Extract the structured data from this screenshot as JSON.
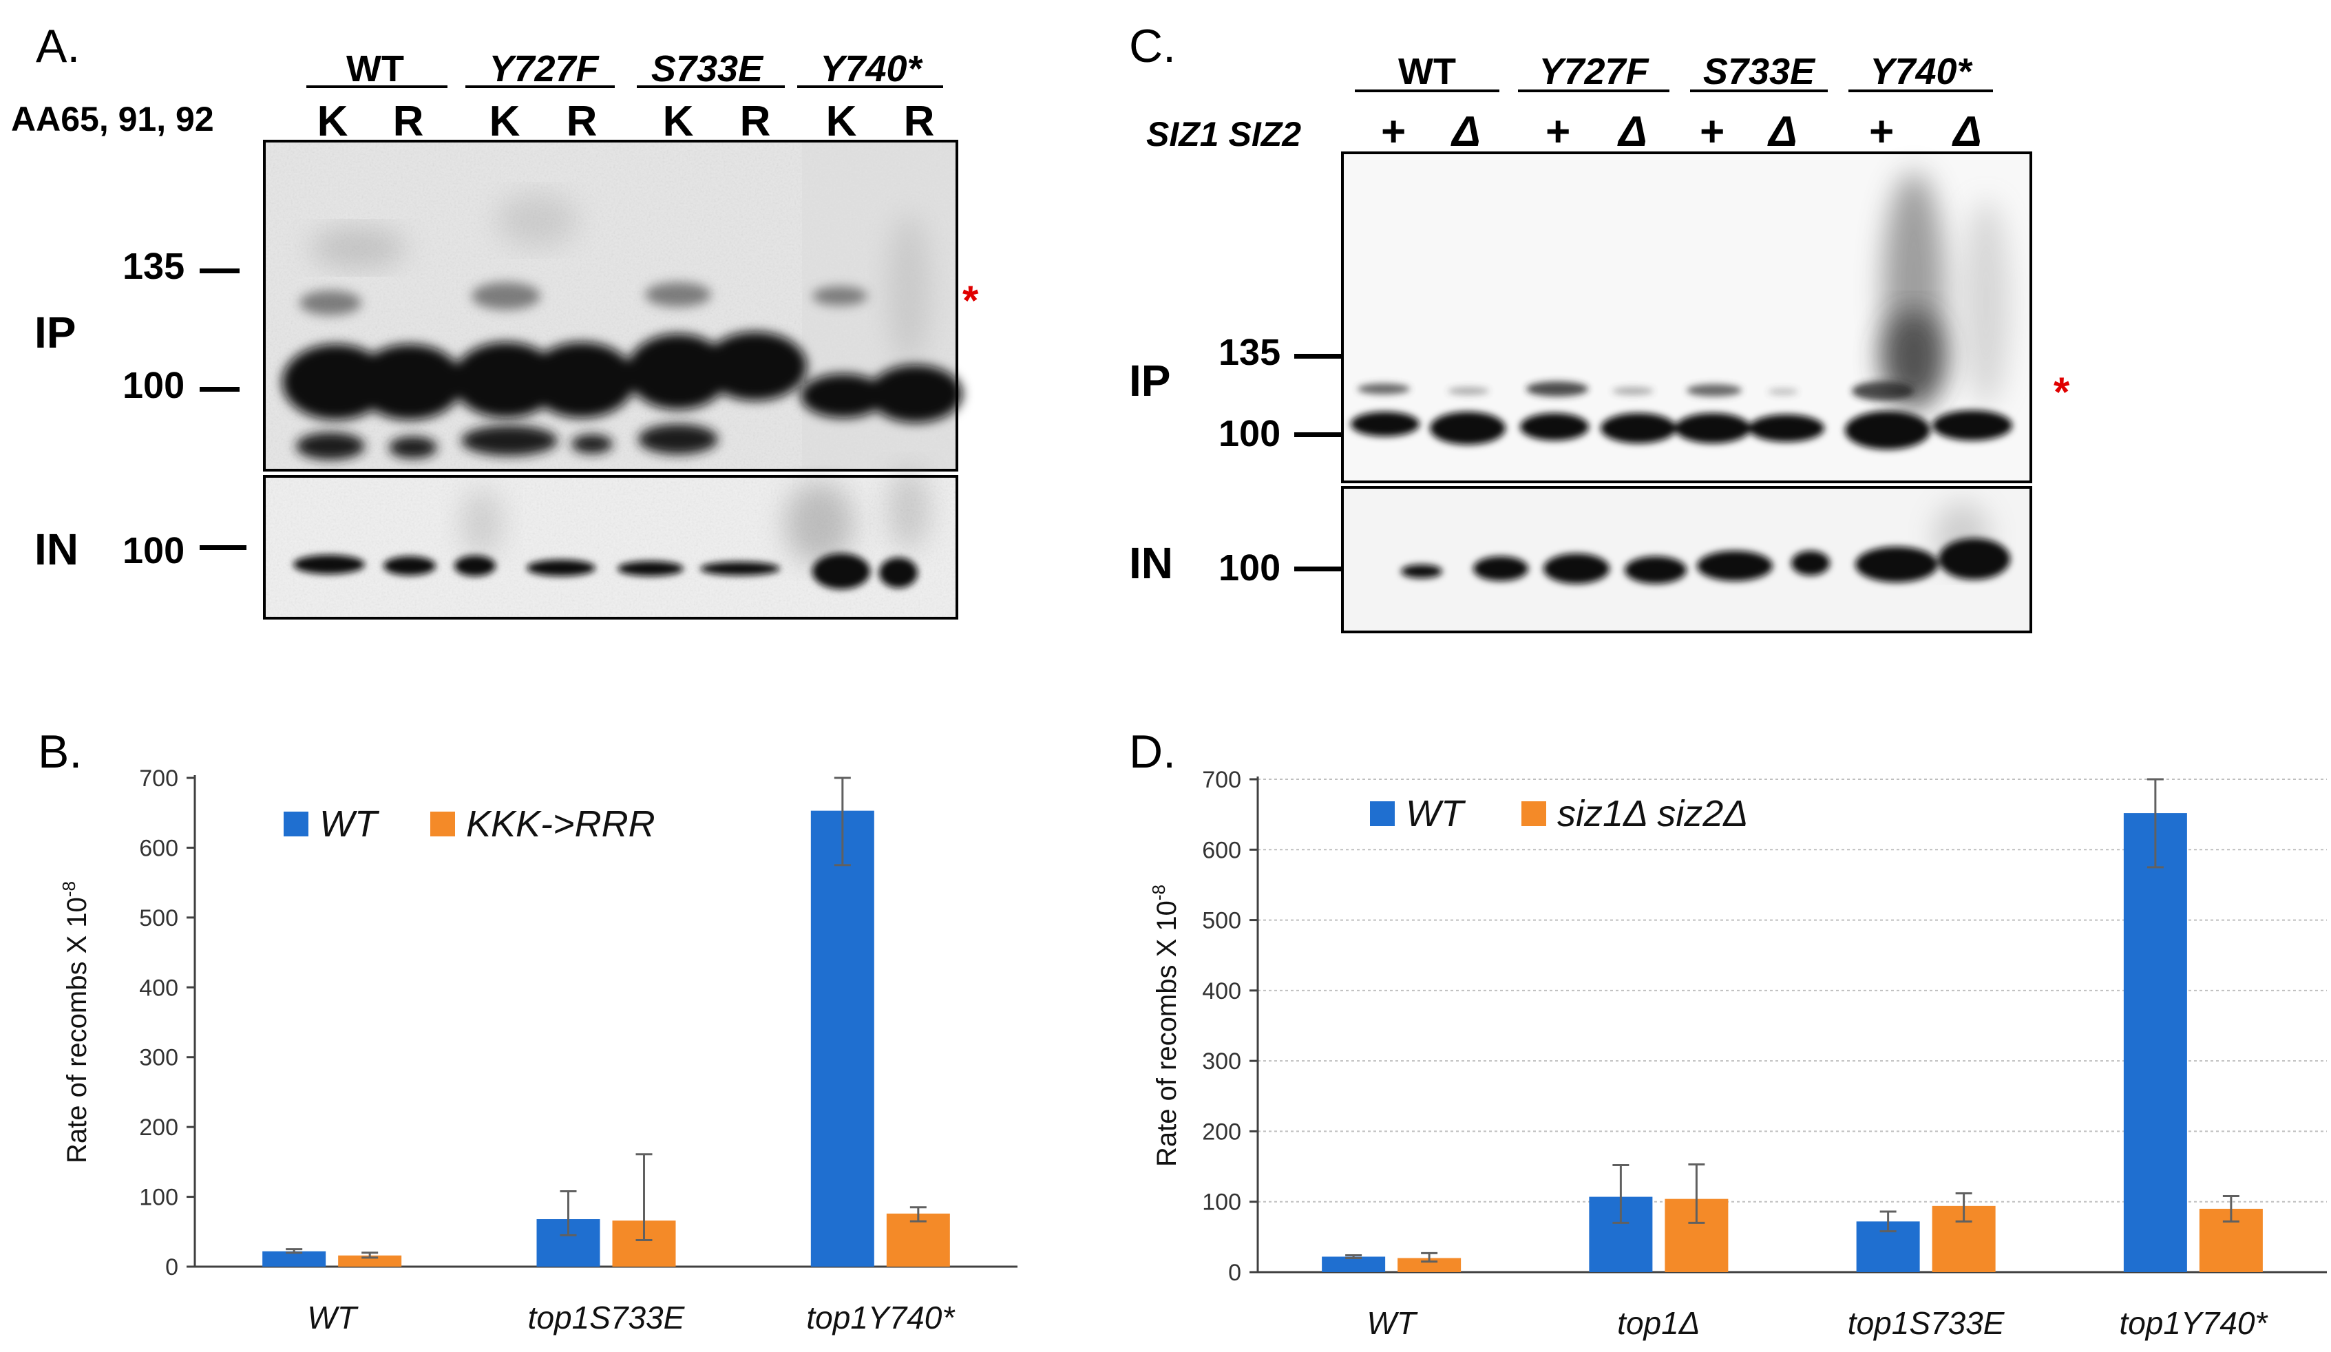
{
  "colors": {
    "wt_bar": "#1F6FD0",
    "mut_bar": "#F48A28",
    "error_bar": "#606060",
    "axis": "#404040",
    "gridline": "#BFBFBF",
    "asterisk": "#E00000",
    "blot_bg": "#ECECEC",
    "band": "#0E0E0E"
  },
  "panel_a": {
    "label": "A.",
    "residues_label": "AA65, 91, 92",
    "groups": [
      "WT",
      "Y727F",
      "S733E",
      "Y740*"
    ],
    "lanes": [
      "K",
      "R",
      "K",
      "R",
      "K",
      "R",
      "K",
      "R"
    ],
    "ip_label": "IP",
    "in_label": "IN",
    "markers": [
      "135",
      "100"
    ],
    "in_marker": "100",
    "asterisk": "*"
  },
  "panel_c": {
    "label": "C.",
    "genotype_label": "SIZ1 SIZ2",
    "groups": [
      "WT",
      "Y727F",
      "S733E",
      "Y740*"
    ],
    "lanes": [
      "+",
      "Δ",
      "+",
      "Δ",
      "+",
      "Δ",
      "+",
      "Δ"
    ],
    "ip_label": "IP",
    "in_label": "IN",
    "markers": [
      "135",
      "100"
    ],
    "in_marker": "100",
    "asterisk": "*"
  },
  "chart_data": [
    {
      "panel": "B.",
      "type": "bar",
      "title": "",
      "xlabel": "",
      "ylabel": "Rate of recombs X 10",
      "ylabel_superscript": "-8",
      "ylim": [
        0,
        700
      ],
      "yticks": [
        "0",
        "100",
        "200",
        "300",
        "400",
        "500",
        "600",
        "700"
      ],
      "grid": false,
      "legend_position": "top-left",
      "categories": [
        "WT",
        "top1S733E",
        "top1Y740*"
      ],
      "series": [
        {
          "name": "WT",
          "values": [
            22,
            68,
            653
          ],
          "err_low": [
            20,
            45,
            575
          ],
          "err_high": [
            25,
            108,
            700
          ]
        },
        {
          "name": "KKK->RRR",
          "values": [
            16,
            66,
            76
          ],
          "err_low": [
            13,
            38,
            65
          ],
          "err_high": [
            20,
            161,
            85
          ]
        }
      ]
    },
    {
      "panel": "D.",
      "type": "bar",
      "title": "",
      "xlabel": "",
      "ylabel": "Rate of recombs X 10",
      "ylabel_superscript": "-8",
      "ylim": [
        0,
        700
      ],
      "yticks": [
        "0",
        "100",
        "200",
        "300",
        "400",
        "500",
        "600",
        "700"
      ],
      "grid": true,
      "legend_position": "top-left",
      "categories": [
        "WT",
        "top1Δ",
        "top1S733E",
        "top1Y740*"
      ],
      "series": [
        {
          "name": "WT",
          "values": [
            22,
            107,
            72,
            652
          ],
          "err_low": [
            20,
            70,
            58,
            575
          ],
          "err_high": [
            24,
            152,
            86,
            700
          ]
        },
        {
          "name": "siz1Δ siz2Δ",
          "values": [
            20,
            104,
            94,
            90
          ],
          "err_low": [
            15,
            70,
            72,
            72
          ],
          "err_high": [
            27,
            153,
            112,
            108
          ]
        }
      ]
    }
  ]
}
